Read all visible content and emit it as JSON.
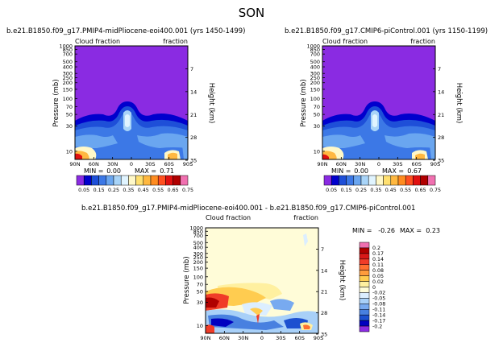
{
  "page": {
    "title": "SON"
  },
  "chart_data": [
    {
      "type": "heatmap",
      "title": "b.e21.B1850.f09_g17.PMIP4-midPliocene-eoi400.001 (yrs 1450-1499)",
      "left_label": "Cloud fraction",
      "right_label": "fraction",
      "ylabel": "Pressure (mb)",
      "y2label": "Height (km)",
      "x_ticks": [
        "90N",
        "60N",
        "30N",
        "0",
        "30S",
        "60S",
        "90S"
      ],
      "y_ticks": [
        "10",
        "30",
        "50",
        "70",
        "100",
        "150",
        "200",
        "250",
        "300",
        "400",
        "500",
        "700",
        "850",
        "1000"
      ],
      "y2_ticks": [
        "35",
        "28",
        "21",
        "14",
        "7"
      ],
      "stats": {
        "min_label": "MIN = ",
        "min": "0.00",
        "max_label": "MAX = ",
        "max": "0.71"
      },
      "colorbar": {
        "labels": [
          "0.05",
          "0.15",
          "0.25",
          "0.35",
          "0.45",
          "0.55",
          "0.65",
          "0.75"
        ],
        "colors": [
          "#8a2be2",
          "#0000cd",
          "#1e4fd8",
          "#3c78e6",
          "#6aa6f0",
          "#a8d4f8",
          "#e0f4ff",
          "#fff8c8",
          "#ffe070",
          "#ffb840",
          "#ff8c20",
          "#ff5020",
          "#e01010",
          "#b00000",
          "#f070b0"
        ]
      }
    },
    {
      "type": "heatmap",
      "title": "b.e21.B1850.f09_g17.CMIP6-piControl.001 (yrs 1150-1199)",
      "left_label": "Cloud fraction",
      "right_label": "fraction",
      "ylabel": "Pressure (mb)",
      "y2label": "Height (km)",
      "x_ticks": [
        "90N",
        "60N",
        "30N",
        "0",
        "30S",
        "60S",
        "90S"
      ],
      "y_ticks": [
        "10",
        "30",
        "50",
        "70",
        "100",
        "150",
        "200",
        "250",
        "300",
        "400",
        "500",
        "700",
        "850",
        "1000"
      ],
      "y2_ticks": [
        "35",
        "28",
        "21",
        "14",
        "7"
      ],
      "stats": {
        "min_label": "MIN = ",
        "min": "0.00",
        "max_label": "MAX = ",
        "max": "0.67"
      },
      "colorbar": {
        "labels": [
          "0.05",
          "0.15",
          "0.25",
          "0.35",
          "0.45",
          "0.55",
          "0.65",
          "0.75"
        ],
        "colors": [
          "#8a2be2",
          "#0000cd",
          "#1e4fd8",
          "#3c78e6",
          "#6aa6f0",
          "#a8d4f8",
          "#e0f4ff",
          "#fff8c8",
          "#ffe070",
          "#ffb840",
          "#ff8c20",
          "#ff5020",
          "#e01010",
          "#b00000",
          "#f070b0"
        ]
      }
    },
    {
      "type": "heatmap",
      "title": "b.e21.B1850.f09_g17.PMIP4-midPliocene-eoi400.001 - b.e21.B1850.f09_g17.CMIP6-piControl.001",
      "left_label": "Cloud fraction",
      "right_label": "fraction",
      "ylabel": "Pressure (mb)",
      "y2label": "Height (km)",
      "x_ticks": [
        "90N",
        "60N",
        "30N",
        "0",
        "30S",
        "60S",
        "90S"
      ],
      "y_ticks": [
        "10",
        "30",
        "50",
        "70",
        "100",
        "150",
        "200",
        "250",
        "300",
        "400",
        "500",
        "700",
        "850",
        "1000"
      ],
      "y2_ticks": [
        "35",
        "28",
        "21",
        "14",
        "7"
      ],
      "stats": {
        "min_label": "MIN = ",
        "min": "-0.26",
        "max_label": "MAX = ",
        "max": "0.23"
      },
      "colorbar": {
        "labels": [
          "0.2",
          "0.17",
          "0.14",
          "0.11",
          "0.08",
          "0.05",
          "0.02",
          "0",
          "-0.02",
          "-0.05",
          "-0.08",
          "-0.11",
          "-0.14",
          "-0.17",
          "-0.2"
        ],
        "colors": [
          "#f070b0",
          "#b00000",
          "#d81818",
          "#f03c28",
          "#ff7030",
          "#ff9c3c",
          "#ffcc50",
          "#fff0a0",
          "#fffcd8",
          "#dceeff",
          "#a8d0f8",
          "#78aaf0",
          "#4880e0",
          "#1c50d0",
          "#0000c0",
          "#8a2be2"
        ]
      }
    }
  ]
}
